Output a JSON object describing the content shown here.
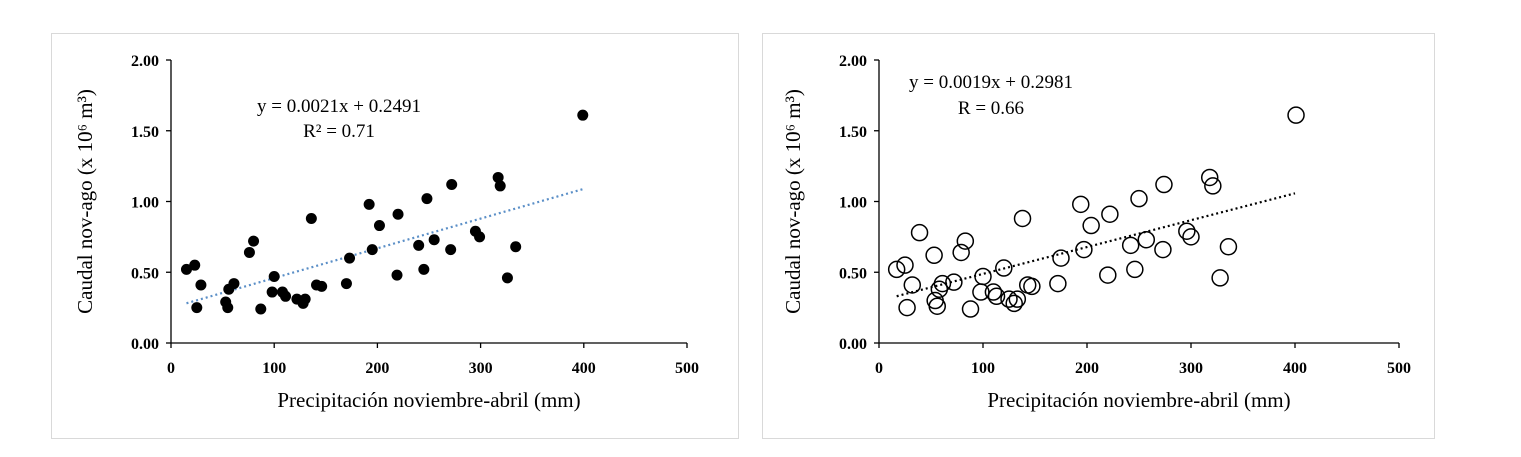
{
  "chart_data": [
    {
      "type": "scatter",
      "xlabel": "Precipitación noviembre-abril (mm)",
      "ylabel": "Caudal nov-ago (x 10⁶ m³)",
      "xlim": [
        0,
        500
      ],
      "ylim": [
        0,
        2
      ],
      "x_ticks": [
        "0",
        "100",
        "200",
        "300",
        "400",
        "500"
      ],
      "y_ticks": [
        "0.00",
        "0.50",
        "1.00",
        "1.50",
        "2.00"
      ],
      "marker": "filled",
      "trendline": {
        "style": "dotted",
        "color": "#5b8fc7",
        "x": [
          15,
          400
        ],
        "slope": 0.0021,
        "intercept": 0.2491
      },
      "annotations": [
        "y = 0.0021x + 0.2491",
        "R² = 0.71"
      ],
      "points": [
        [
          15,
          0.52
        ],
        [
          23,
          0.55
        ],
        [
          25,
          0.25
        ],
        [
          29,
          0.41
        ],
        [
          53,
          0.29
        ],
        [
          55,
          0.25
        ],
        [
          56,
          0.38
        ],
        [
          61,
          0.42
        ],
        [
          76,
          0.64
        ],
        [
          80,
          0.72
        ],
        [
          87,
          0.24
        ],
        [
          98,
          0.36
        ],
        [
          100,
          0.47
        ],
        [
          108,
          0.36
        ],
        [
          111,
          0.33
        ],
        [
          122,
          0.31
        ],
        [
          128,
          0.28
        ],
        [
          130,
          0.31
        ],
        [
          136,
          0.88
        ],
        [
          141,
          0.41
        ],
        [
          146,
          0.4
        ],
        [
          170,
          0.42
        ],
        [
          173,
          0.6
        ],
        [
          192,
          0.98
        ],
        [
          195,
          0.66
        ],
        [
          202,
          0.83
        ],
        [
          219,
          0.48
        ],
        [
          220,
          0.91
        ],
        [
          240,
          0.69
        ],
        [
          245,
          0.52
        ],
        [
          248,
          1.02
        ],
        [
          255,
          0.73
        ],
        [
          271,
          0.66
        ],
        [
          272,
          1.12
        ],
        [
          295,
          0.79
        ],
        [
          299,
          0.75
        ],
        [
          317,
          1.17
        ],
        [
          319,
          1.11
        ],
        [
          326,
          0.46
        ],
        [
          334,
          0.68
        ],
        [
          399,
          1.61
        ]
      ]
    },
    {
      "type": "scatter",
      "xlabel": "Precipitación noviembre-abril (mm)",
      "ylabel": "Caudal nov-ago (x 10⁶ m³)",
      "xlim": [
        0,
        500
      ],
      "ylim": [
        0,
        2
      ],
      "x_ticks": [
        "0",
        "100",
        "200",
        "300",
        "400",
        "500"
      ],
      "y_ticks": [
        "0.00",
        "0.50",
        "1.00",
        "1.50",
        "2.00"
      ],
      "marker": "hollow",
      "trendline": {
        "style": "dotted",
        "color": "#000000",
        "x": [
          17,
          400
        ],
        "slope": 0.0019,
        "intercept": 0.2981
      },
      "annotations": [
        "y = 0.0019x + 0.2981",
        "R = 0.66"
      ],
      "points": [
        [
          17,
          0.52
        ],
        [
          25,
          0.55
        ],
        [
          27,
          0.25
        ],
        [
          32,
          0.41
        ],
        [
          39,
          0.78
        ],
        [
          53,
          0.62
        ],
        [
          54,
          0.3
        ],
        [
          56,
          0.26
        ],
        [
          58,
          0.38
        ],
        [
          61,
          0.42
        ],
        [
          72,
          0.43
        ],
        [
          79,
          0.64
        ],
        [
          83,
          0.72
        ],
        [
          88,
          0.24
        ],
        [
          98,
          0.36
        ],
        [
          100,
          0.47
        ],
        [
          110,
          0.36
        ],
        [
          113,
          0.33
        ],
        [
          120,
          0.53
        ],
        [
          125,
          0.31
        ],
        [
          130,
          0.28
        ],
        [
          133,
          0.31
        ],
        [
          138,
          0.88
        ],
        [
          143,
          0.41
        ],
        [
          147,
          0.4
        ],
        [
          172,
          0.42
        ],
        [
          175,
          0.6
        ],
        [
          194,
          0.98
        ],
        [
          197,
          0.66
        ],
        [
          204,
          0.83
        ],
        [
          220,
          0.48
        ],
        [
          222,
          0.91
        ],
        [
          242,
          0.69
        ],
        [
          246,
          0.52
        ],
        [
          250,
          1.02
        ],
        [
          257,
          0.73
        ],
        [
          273,
          0.66
        ],
        [
          274,
          1.12
        ],
        [
          296,
          0.79
        ],
        [
          300,
          0.75
        ],
        [
          318,
          1.17
        ],
        [
          321,
          1.11
        ],
        [
          328,
          0.46
        ],
        [
          336,
          0.68
        ],
        [
          401,
          1.61
        ]
      ]
    }
  ]
}
